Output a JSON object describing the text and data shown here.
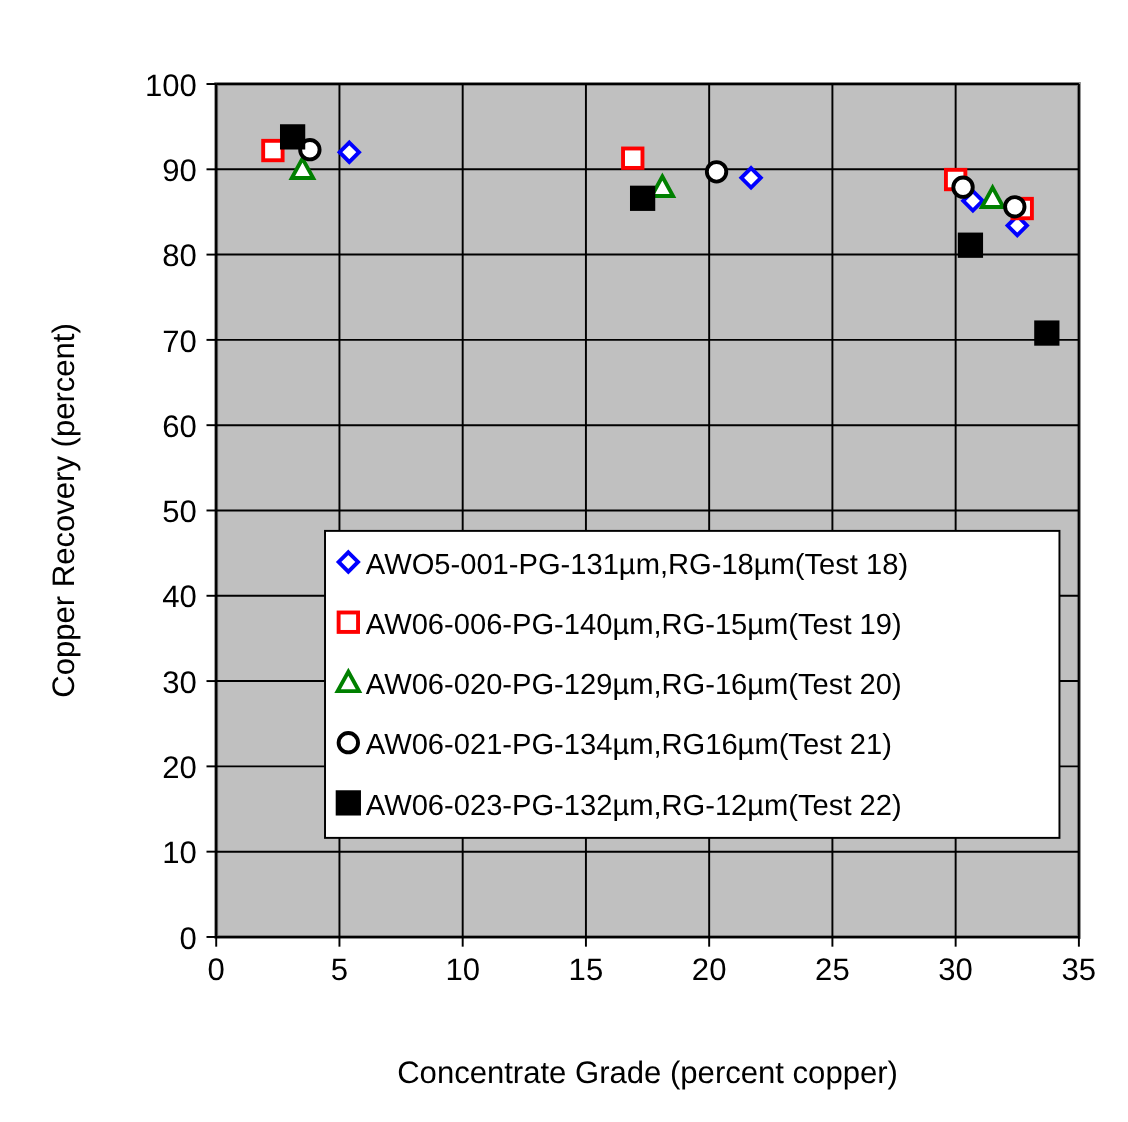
{
  "chart_data": {
    "type": "scatter",
    "xlabel": "Concentrate Grade (percent copper)",
    "ylabel": "Copper Recovery (percent)",
    "xlim": [
      0,
      35
    ],
    "xticks": [
      0,
      5,
      10,
      15,
      20,
      25,
      30,
      35
    ],
    "ylim": [
      0,
      100
    ],
    "yticks": [
      0,
      10,
      20,
      30,
      40,
      50,
      60,
      70,
      80,
      90,
      100
    ],
    "grid": true,
    "legend": "bottom right",
    "series": [
      {
        "name": "AWO5-001-PG-131µm,RG-18µm(Test 18)",
        "color": "#0000ff",
        "marker": "diamond",
        "x": [
          5.4,
          21.7,
          30.7,
          32.5
        ],
        "values": [
          92.0,
          89.0,
          86.3,
          83.4
        ]
      },
      {
        "name": "AW06-006-PG-140µm,RG-15µm(Test 19)",
        "color": "#ff0000",
        "marker": "square",
        "x": [
          2.3,
          16.9,
          30.0,
          32.7
        ],
        "values": [
          92.2,
          91.3,
          88.8,
          85.4
        ]
      },
      {
        "name": "AW06-020-PG-129µm,RG-16µm(Test 20)",
        "color": "#008000",
        "marker": "triangle",
        "x": [
          3.5,
          18.1,
          31.5
        ],
        "values": [
          90.0,
          87.9,
          86.6
        ]
      },
      {
        "name": "AW06-021-PG-134µm,RG16µm(Test 21)",
        "color": "#000000",
        "marker": "circle",
        "x": [
          3.8,
          20.3,
          30.3,
          32.4
        ],
        "values": [
          92.3,
          89.7,
          87.9,
          85.6
        ]
      },
      {
        "name": "AW06-023-PG-132µm,RG-12µm(Test 22)",
        "color": "#000000",
        "marker": "square",
        "x": [
          3.1,
          17.3,
          30.6,
          33.7
        ],
        "values": [
          93.8,
          86.6,
          81.1,
          70.8
        ]
      }
    ]
  }
}
